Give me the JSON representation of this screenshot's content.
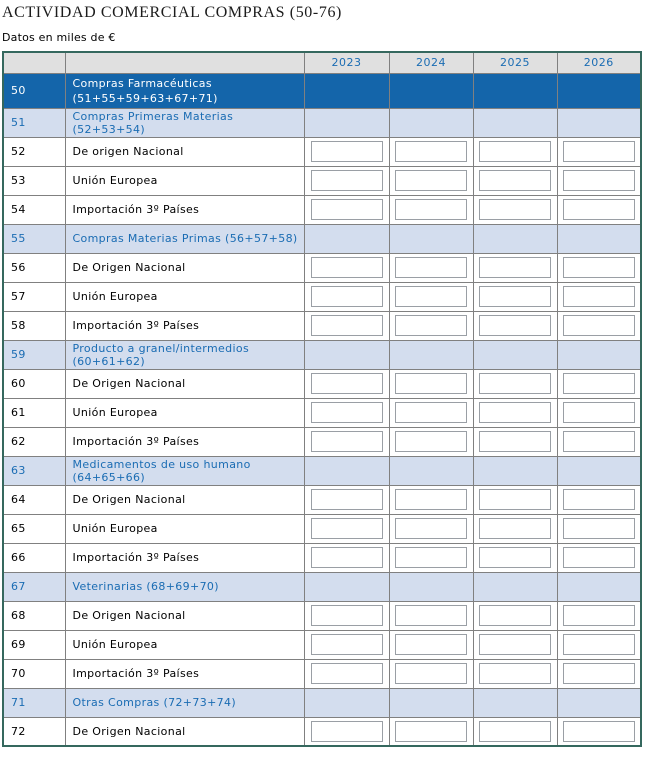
{
  "page": {
    "title": "ACTIVIDAD COMERCIAL COMPRAS (50-76)",
    "subtitle": "Datos en miles de €"
  },
  "table": {
    "year_columns": [
      "2023",
      "2024",
      "2025",
      "2026"
    ],
    "rows": [
      {
        "code": "50",
        "label": "Compras Farmacéuticas",
        "label_line2": "(51+55+59+63+67+71)",
        "type": "total",
        "has_inputs": false
      },
      {
        "code": "51",
        "label": "Compras Primeras Materias (52+53+54)",
        "type": "section",
        "has_inputs": false
      },
      {
        "code": "52",
        "label": "De origen Nacional",
        "type": "data",
        "has_inputs": true
      },
      {
        "code": "53",
        "label": "Unión Europea",
        "type": "data",
        "has_inputs": true
      },
      {
        "code": "54",
        "label": "Importación 3º Países",
        "type": "data",
        "has_inputs": true
      },
      {
        "code": "55",
        "label": "Compras Materias Primas (56+57+58)",
        "type": "section",
        "has_inputs": false
      },
      {
        "code": "56",
        "label": "De Origen Nacional",
        "type": "data",
        "has_inputs": true
      },
      {
        "code": "57",
        "label": "Unión Europea",
        "type": "data",
        "has_inputs": true
      },
      {
        "code": "58",
        "label": "Importación 3º Países",
        "type": "data",
        "has_inputs": true
      },
      {
        "code": "59",
        "label": "Producto a granel/intermedios (60+61+62)",
        "type": "section",
        "has_inputs": false
      },
      {
        "code": "60",
        "label": "De Origen Nacional",
        "type": "data",
        "has_inputs": true
      },
      {
        "code": "61",
        "label": "Unión Europea",
        "type": "data",
        "has_inputs": true
      },
      {
        "code": "62",
        "label": "Importación 3º Países",
        "type": "data",
        "has_inputs": true
      },
      {
        "code": "63",
        "label": "Medicamentos de uso humano (64+65+66)",
        "type": "section",
        "has_inputs": false
      },
      {
        "code": "64",
        "label": "De Origen Nacional",
        "type": "data",
        "has_inputs": true
      },
      {
        "code": "65",
        "label": "Unión Europea",
        "type": "data",
        "has_inputs": true
      },
      {
        "code": "66",
        "label": "Importación 3º Países",
        "type": "data",
        "has_inputs": true
      },
      {
        "code": "67",
        "label": "Veterinarias (68+69+70)",
        "type": "section",
        "has_inputs": false
      },
      {
        "code": "68",
        "label": "De Origen Nacional",
        "type": "data",
        "has_inputs": true
      },
      {
        "code": "69",
        "label": "Unión Europea",
        "type": "data",
        "has_inputs": true
      },
      {
        "code": "70",
        "label": "Importación 3º Países",
        "type": "data",
        "has_inputs": true
      },
      {
        "code": "71",
        "label": "Otras Compras (72+73+74)",
        "type": "section",
        "has_inputs": false
      },
      {
        "code": "72",
        "label": "De Origen Nacional",
        "type": "data",
        "has_inputs": true
      }
    ],
    "input_value": ""
  },
  "colors": {
    "accent_blue": "#1465aa",
    "section_row_bg": "#d3ddee",
    "link_blue": "#1a6cb3",
    "table_border": "#35685e",
    "grid_line": "#808080",
    "header_bg": "#e0e0e0",
    "input_border": "#9a9fa5"
  }
}
